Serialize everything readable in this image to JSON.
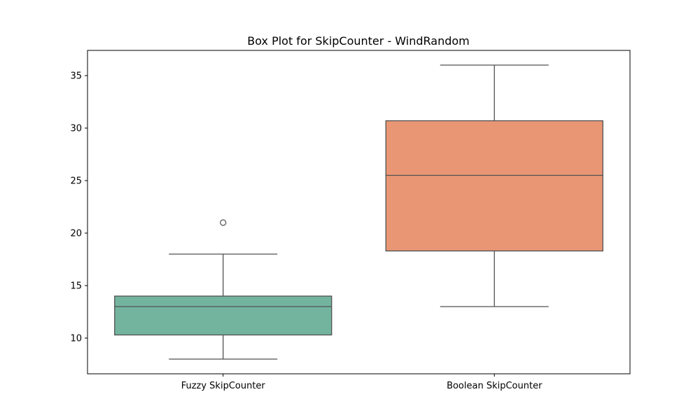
{
  "chart_data": {
    "type": "box",
    "title": "Box Plot for SkipCounter - WindRandom",
    "xlabel": "",
    "ylabel": "",
    "ylim": [
      6.6,
      37.4
    ],
    "yticks": [
      10,
      15,
      20,
      25,
      30,
      35
    ],
    "grid": false,
    "legend": "none",
    "categories": [
      "Fuzzy SkipCounter",
      "Boolean SkipCounter"
    ],
    "boxes": [
      {
        "category": "Fuzzy SkipCounter",
        "whisker_low": 8,
        "q1": 10.3,
        "median": 13,
        "q3": 14,
        "whisker_high": 18,
        "outliers": [
          21
        ],
        "color": "#73b49f"
      },
      {
        "category": "Boolean SkipCounter",
        "whisker_low": 13,
        "q1": 18.3,
        "median": 25.5,
        "q3": 30.7,
        "whisker_high": 36,
        "outliers": [],
        "color": "#e99675"
      }
    ]
  }
}
